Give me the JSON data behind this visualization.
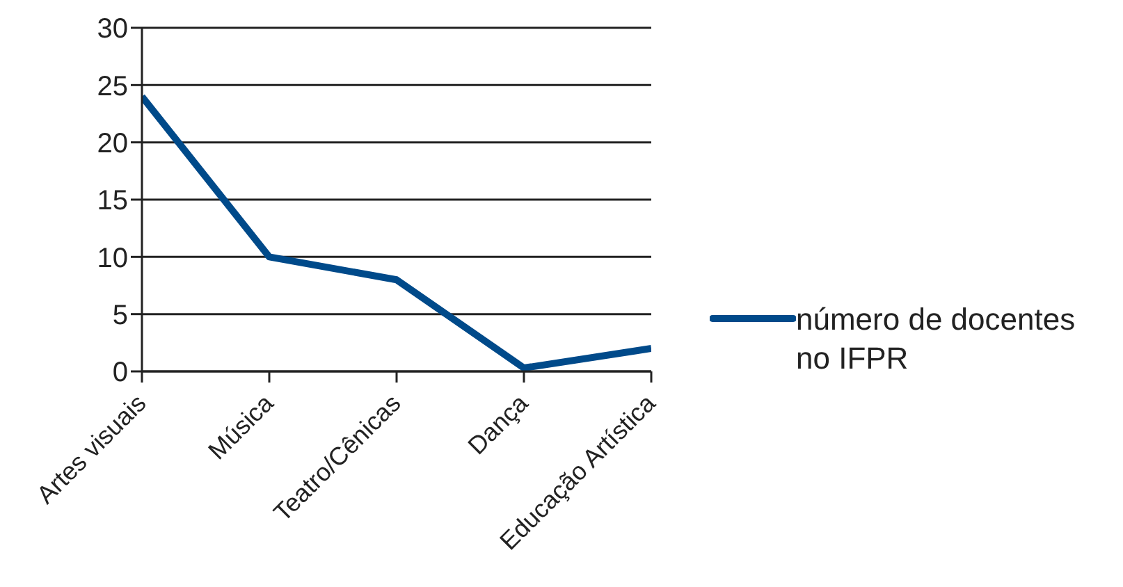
{
  "chart_data": {
    "type": "line",
    "categories": [
      "Artes visuais",
      "Música",
      "Teatro/Cênicas",
      "Dança",
      "Educação Artística"
    ],
    "series": [
      {
        "name": "número de docentes no IFPR",
        "color": "#004a8a",
        "values": [
          24,
          10,
          8,
          0.3,
          2
        ]
      }
    ],
    "ylim": [
      0,
      30
    ],
    "yticks": [
      0,
      5,
      10,
      15,
      20,
      25,
      30
    ],
    "grid": "y",
    "legend": "right",
    "marker": "none"
  }
}
